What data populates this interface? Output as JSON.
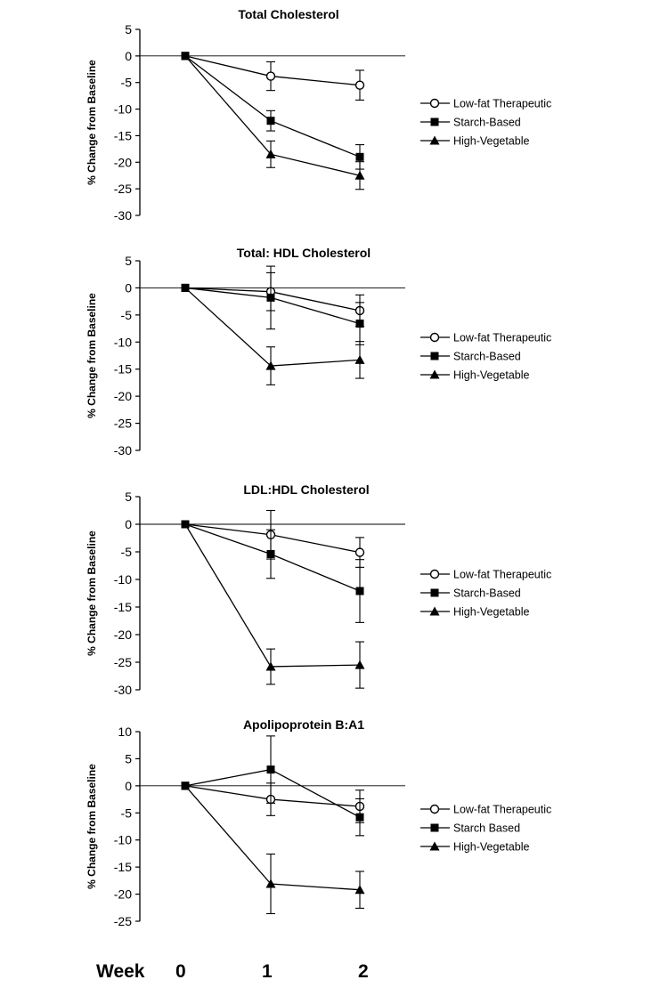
{
  "week_row": {
    "label": "Week",
    "ticks": [
      "0",
      "1",
      "2"
    ]
  },
  "chart_data": [
    {
      "type": "line",
      "title": "Total Cholesterol",
      "ylabel": "% Change from Baseline",
      "xlabel": "",
      "x": [
        0,
        1,
        2
      ],
      "ylim": [
        -30,
        5
      ],
      "yticks": [
        5,
        0,
        -5,
        -10,
        -15,
        -20,
        -25,
        -30
      ],
      "zero_line": true,
      "legend": {
        "placement": "right"
      },
      "series": [
        {
          "name": "Low-fat Therapeutic",
          "marker": "open-circle",
          "values": [
            0,
            -3.8,
            -5.5
          ],
          "error": [
            0,
            2.7,
            2.8
          ]
        },
        {
          "name": "Starch-Based",
          "marker": "filled-square",
          "values": [
            0,
            -12.2,
            -19
          ],
          "error": [
            0,
            1.9,
            2.3
          ]
        },
        {
          "name": "High-Vegetable",
          "marker": "filled-triangle",
          "values": [
            0,
            -18.5,
            -22.5
          ],
          "error": [
            0,
            2.5,
            2.6
          ]
        }
      ]
    },
    {
      "type": "line",
      "title": "Total: HDL Cholesterol",
      "ylabel": "% Change from Baseline",
      "xlabel": "",
      "x": [
        0,
        1,
        2
      ],
      "ylim": [
        -30,
        5
      ],
      "yticks": [
        5,
        0,
        -5,
        -10,
        -15,
        -20,
        -25,
        -30
      ],
      "zero_line": true,
      "legend": {
        "placement": "right"
      },
      "series": [
        {
          "name": "Low-fat Therapeutic",
          "marker": "open-circle",
          "values": [
            0,
            -0.7,
            -4.2
          ],
          "error": [
            0,
            3.5,
            2.9
          ]
        },
        {
          "name": "Starch-Based",
          "marker": "filled-square",
          "values": [
            0,
            -1.8,
            -6.6
          ],
          "error": [
            0,
            5.8,
            3.9
          ]
        },
        {
          "name": "High-Vegetable",
          "marker": "filled-triangle",
          "values": [
            0,
            -14.4,
            -13.3
          ],
          "error": [
            0,
            3.5,
            3.4
          ]
        }
      ]
    },
    {
      "type": "line",
      "title": "LDL:HDL Cholesterol",
      "ylabel": "% Change from Baseline",
      "xlabel": "",
      "x": [
        0,
        1,
        2
      ],
      "ylim": [
        -30,
        5
      ],
      "yticks": [
        5,
        0,
        -5,
        -10,
        -15,
        -20,
        -25,
        -30
      ],
      "zero_line": true,
      "legend": {
        "placement": "right"
      },
      "series": [
        {
          "name": "Low-fat Therapeutic",
          "marker": "open-circle",
          "values": [
            0,
            -1.9,
            -5.1
          ],
          "error": [
            0,
            4.4,
            2.7
          ]
        },
        {
          "name": "Starch-Based",
          "marker": "filled-square",
          "values": [
            0,
            -5.4,
            -12.1
          ],
          "error": [
            0,
            4.4,
            5.7
          ]
        },
        {
          "name": "High-Vegetable",
          "marker": "filled-triangle",
          "values": [
            0,
            -25.8,
            -25.5
          ],
          "error": [
            0,
            3.2,
            4.2
          ]
        }
      ]
    },
    {
      "type": "line",
      "title": "Apolipoprotein B:A1",
      "ylabel": "% Change from Baseline",
      "xlabel": "",
      "x": [
        0,
        1,
        2
      ],
      "ylim": [
        -25,
        10
      ],
      "yticks": [
        10,
        5,
        0,
        -5,
        -10,
        -15,
        -20,
        -25
      ],
      "zero_line": true,
      "legend": {
        "placement": "right"
      },
      "series": [
        {
          "name": "Low-fat Therapeutic",
          "marker": "open-circle",
          "values": [
            0,
            -2.5,
            -3.8
          ],
          "error": [
            0,
            3.0,
            3.0
          ]
        },
        {
          "name": "Starch Based",
          "marker": "filled-square",
          "values": [
            0,
            3.0,
            -5.8
          ],
          "error": [
            0,
            6.2,
            3.4
          ]
        },
        {
          "name": "High-Vegetable",
          "marker": "filled-triangle",
          "values": [
            0,
            -18.1,
            -19.2
          ],
          "error": [
            0,
            5.5,
            3.4
          ]
        }
      ]
    }
  ]
}
